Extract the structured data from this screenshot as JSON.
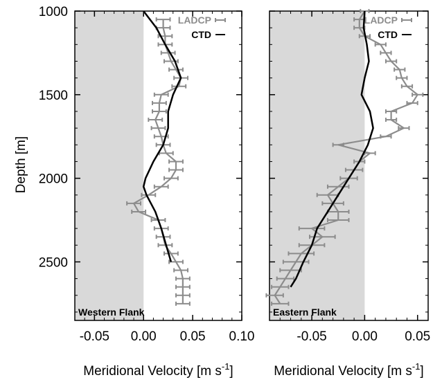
{
  "chart_data": [
    {
      "type": "line",
      "panel_label": "Western Flank",
      "xlabel": "Meridional Velocity [m s",
      "xlabel_sup": "-1",
      "xlabel_close": "]",
      "ylabel": "Depth [m]",
      "xlim": [
        -0.07,
        0.1
      ],
      "ylim": [
        2850,
        1000
      ],
      "xticks": [
        "-0.05",
        "0.00",
        "0.05",
        "0.10"
      ],
      "xtick_values": [
        -0.05,
        0.0,
        0.05,
        0.1
      ],
      "yticks": [
        "1000",
        "1500",
        "2000",
        "2500"
      ],
      "ytick_values": [
        1000,
        1500,
        2000,
        2500
      ],
      "shade_negative": true,
      "legend_position": "top-right",
      "series": [
        {
          "name": "LADCP",
          "color": "#8c8c8c",
          "errorbars": true,
          "depth": [
            1050,
            1100,
            1150,
            1200,
            1250,
            1300,
            1350,
            1400,
            1450,
            1500,
            1550,
            1600,
            1650,
            1700,
            1750,
            1800,
            1850,
            1900,
            1950,
            2000,
            2050,
            2100,
            2150,
            2200,
            2250,
            2300,
            2350,
            2400,
            2450,
            2500,
            2550,
            2600,
            2650,
            2700,
            2750
          ],
          "values": [
            0.02,
            0.02,
            0.022,
            0.022,
            0.025,
            0.028,
            0.033,
            0.038,
            0.036,
            0.018,
            0.016,
            0.016,
            0.012,
            0.015,
            0.018,
            0.02,
            0.023,
            0.033,
            0.033,
            0.028,
            0.018,
            0.005,
            -0.01,
            -0.005,
            0.015,
            0.018,
            0.02,
            0.022,
            0.028,
            0.033,
            0.038,
            0.04,
            0.04,
            0.04,
            0.04
          ],
          "err": [
            0.007,
            0.007,
            0.007,
            0.007,
            0.007,
            0.007,
            0.007,
            0.007,
            0.007,
            0.007,
            0.007,
            0.007,
            0.007,
            0.007,
            0.007,
            0.007,
            0.007,
            0.007,
            0.007,
            0.007,
            0.007,
            0.007,
            0.007,
            0.007,
            0.007,
            0.007,
            0.007,
            0.007,
            0.007,
            0.007,
            0.007,
            0.007,
            0.007,
            0.007,
            0.007
          ]
        },
        {
          "name": "CTD",
          "color": "#000000",
          "errorbars": false,
          "depth": [
            1000,
            1100,
            1200,
            1300,
            1400,
            1500,
            1600,
            1700,
            1800,
            1900,
            2000,
            2050,
            2100,
            2200,
            2300,
            2400,
            2500
          ],
          "values": [
            0.0,
            0.013,
            0.022,
            0.032,
            0.038,
            0.03,
            0.025,
            0.025,
            0.02,
            0.01,
            0.002,
            0.0,
            0.003,
            0.012,
            0.018,
            0.023,
            0.028
          ]
        }
      ]
    },
    {
      "type": "line",
      "panel_label": "Eastern Flank",
      "xlabel": "Meridional Velocity [m s",
      "xlabel_sup": "-1",
      "xlabel_close": "]",
      "xlim": [
        -0.09,
        0.06
      ],
      "ylim": [
        2850,
        1000
      ],
      "xticks": [
        "-0.05",
        "0.00",
        "0.05"
      ],
      "xtick_values": [
        -0.05,
        0.0,
        0.05
      ],
      "yticks": [],
      "ytick_values": [
        1000,
        1500,
        2000,
        2500
      ],
      "shade_negative": true,
      "legend_position": "top-right",
      "series": [
        {
          "name": "LADCP",
          "color": "#8c8c8c",
          "errorbars": true,
          "depth": [
            1000,
            1050,
            1100,
            1150,
            1200,
            1250,
            1300,
            1350,
            1400,
            1450,
            1500,
            1550,
            1600,
            1650,
            1700,
            1750,
            1800,
            1850,
            1900,
            1950,
            2000,
            2050,
            2100,
            2150,
            2200,
            2250,
            2300,
            2350,
            2400,
            2450,
            2500,
            2550,
            2600,
            2650,
            2700,
            2750
          ],
          "values": [
            0.0,
            -0.005,
            -0.005,
            0.0,
            0.015,
            0.02,
            0.025,
            0.033,
            0.035,
            0.04,
            0.05,
            0.045,
            0.025,
            0.025,
            0.037,
            0.02,
            -0.025,
            0.005,
            -0.005,
            -0.01,
            -0.015,
            -0.025,
            -0.035,
            -0.03,
            -0.025,
            -0.025,
            -0.05,
            -0.04,
            -0.05,
            -0.06,
            -0.065,
            -0.07,
            -0.075,
            -0.08,
            -0.085,
            -0.08
          ],
          "err": [
            0.004,
            0.005,
            0.005,
            0.005,
            0.005,
            0.005,
            0.005,
            0.005,
            0.005,
            0.005,
            0.005,
            0.005,
            0.005,
            0.005,
            0.005,
            0.005,
            0.005,
            0.005,
            0.005,
            0.008,
            0.008,
            0.01,
            0.01,
            0.01,
            0.01,
            0.01,
            0.012,
            0.012,
            0.012,
            0.012,
            0.012,
            0.01,
            0.008,
            0.008,
            0.008,
            0.008
          ]
        },
        {
          "name": "CTD",
          "color": "#000000",
          "errorbars": false,
          "depth": [
            1000,
            1100,
            1200,
            1300,
            1400,
            1500,
            1600,
            1700,
            1800,
            1900,
            2000,
            2100,
            2200,
            2300,
            2400,
            2500,
            2600,
            2650
          ],
          "values": [
            0.0,
            -0.001,
            0.002,
            0.004,
            0.0,
            -0.003,
            0.005,
            0.008,
            0.003,
            -0.005,
            -0.015,
            -0.025,
            -0.035,
            -0.045,
            -0.05,
            -0.058,
            -0.065,
            -0.07
          ]
        }
      ]
    }
  ]
}
